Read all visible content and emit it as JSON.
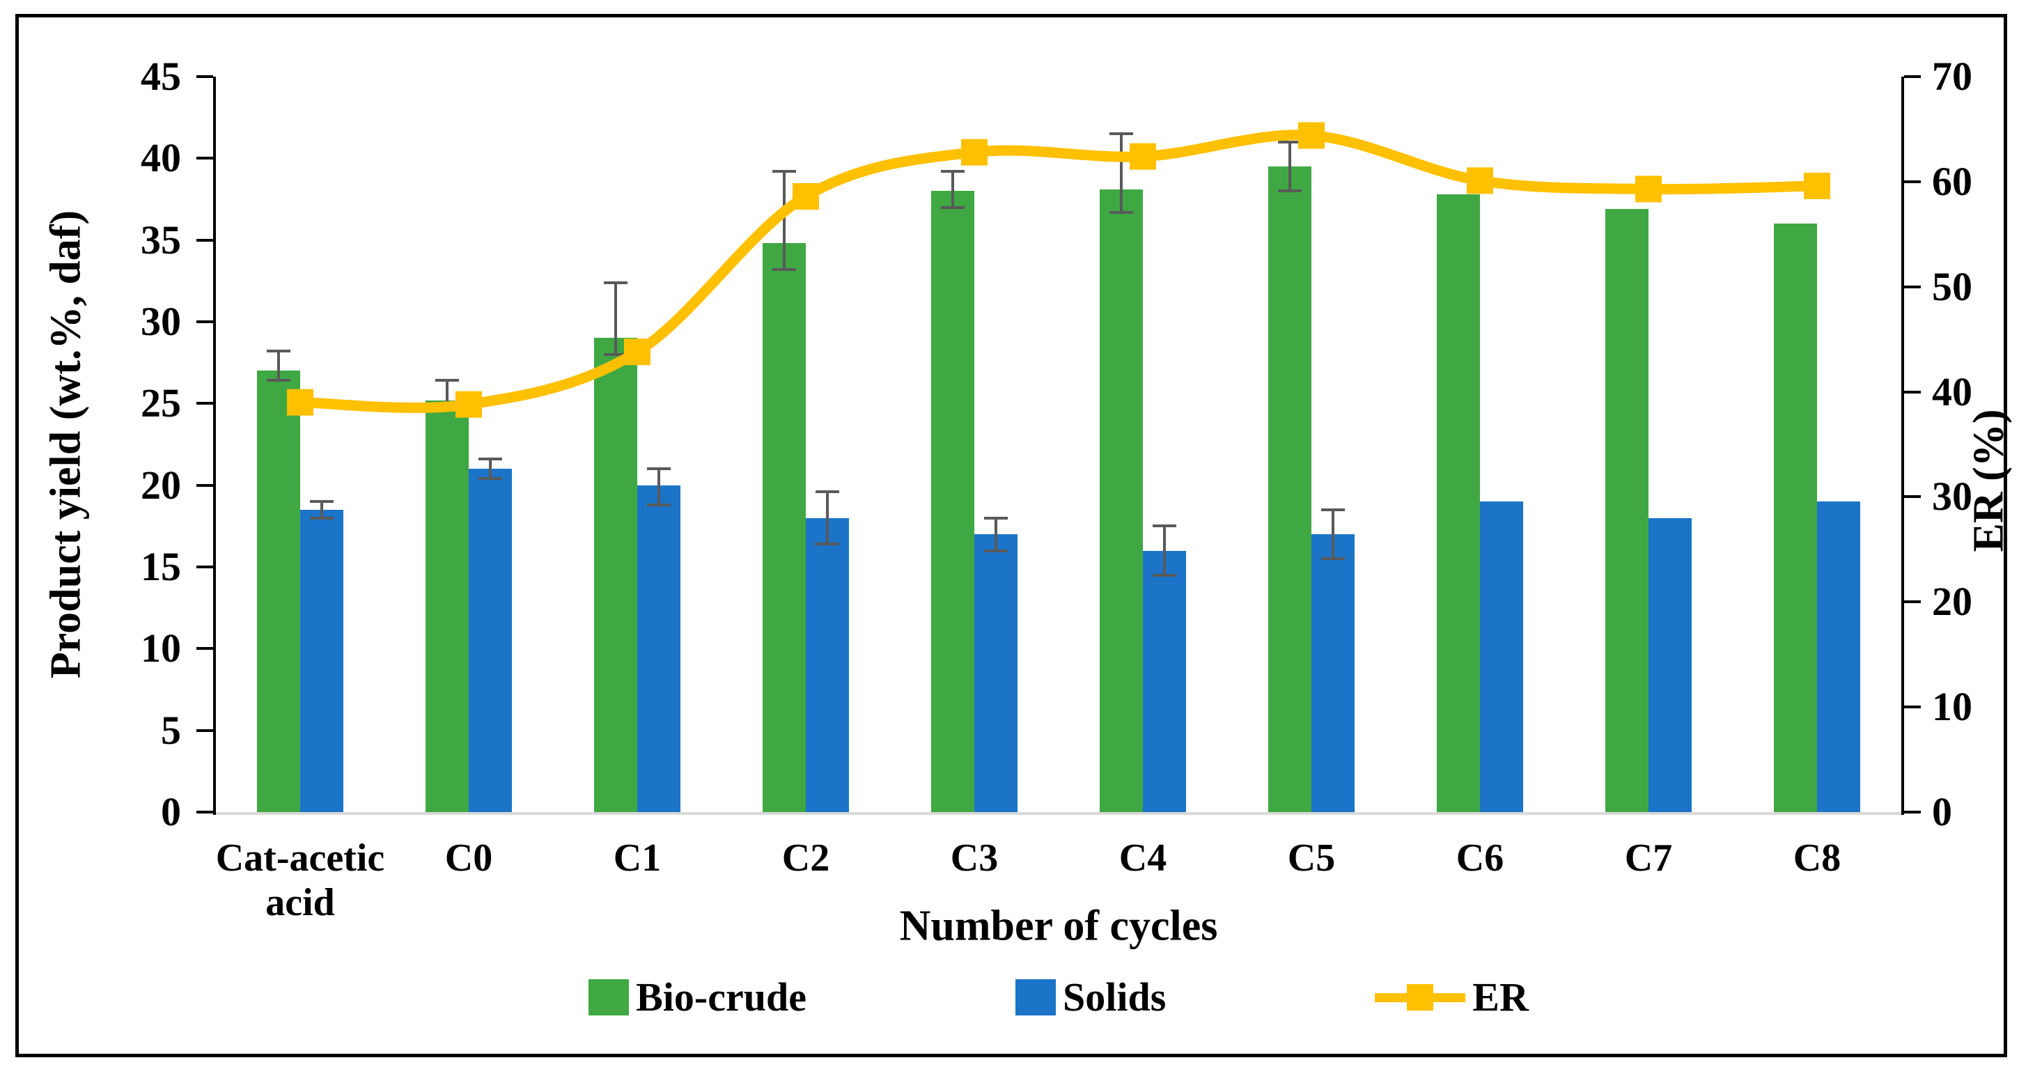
{
  "chart_data": {
    "type": "bar+line",
    "categories": [
      "Cat-acetic acid",
      "C0",
      "C1",
      "C2",
      "C3",
      "C4",
      "C5",
      "C6",
      "C7",
      "C8"
    ],
    "x_axis": {
      "label": "Number of cycles"
    },
    "y_left": {
      "label": "Product yield (wt.%, daf)",
      "min": 0,
      "max": 45,
      "tick_step": 5,
      "ticks": [
        45,
        40,
        35,
        30,
        25,
        20,
        15,
        10,
        5,
        0
      ]
    },
    "y_right": {
      "label": "ER (%)",
      "min": 0,
      "max": 70,
      "tick_step": 10,
      "ticks": [
        70,
        60,
        50,
        40,
        30,
        20,
        10,
        0
      ]
    },
    "grid": false,
    "legend_position": "bottom",
    "series": [
      {
        "name": "Bio-crude",
        "type": "bar",
        "axis": "left",
        "color": "#3FA843",
        "values": [
          27.0,
          25.2,
          29.0,
          34.8,
          38.0,
          38.1,
          39.5,
          37.8,
          36.9,
          36.0
        ],
        "err_up": [
          1.2,
          1.2,
          3.4,
          4.4,
          1.2,
          3.4,
          1.5,
          0,
          0,
          0
        ],
        "err_dn": [
          0.6,
          0.5,
          1.0,
          1.6,
          1.0,
          1.4,
          1.5,
          0,
          0,
          0
        ]
      },
      {
        "name": "Solids",
        "type": "bar",
        "axis": "left",
        "color": "#1B74C8",
        "values": [
          18.5,
          21.0,
          20.0,
          18.0,
          17.0,
          16.0,
          17.0,
          19.0,
          18.0,
          19.0
        ],
        "err_up": [
          0.5,
          0.6,
          1.0,
          1.6,
          1.0,
          1.5,
          1.5,
          0,
          0,
          0
        ],
        "err_dn": [
          0.5,
          0.6,
          1.2,
          1.6,
          1.0,
          1.5,
          1.5,
          0,
          0,
          0
        ]
      },
      {
        "name": "ER",
        "type": "line",
        "axis": "right",
        "color": "#FFC000",
        "values": [
          39.0,
          38.8,
          43.8,
          58.6,
          62.8,
          62.4,
          64.4,
          60.1,
          59.3,
          59.6
        ]
      }
    ]
  },
  "colors": {
    "bio_crude": "#3FA843",
    "solids": "#1B74C8",
    "er_line": "#FFC000",
    "error_bar": "#595959",
    "baseline": "#d9d9d9",
    "frame": "#000000"
  }
}
